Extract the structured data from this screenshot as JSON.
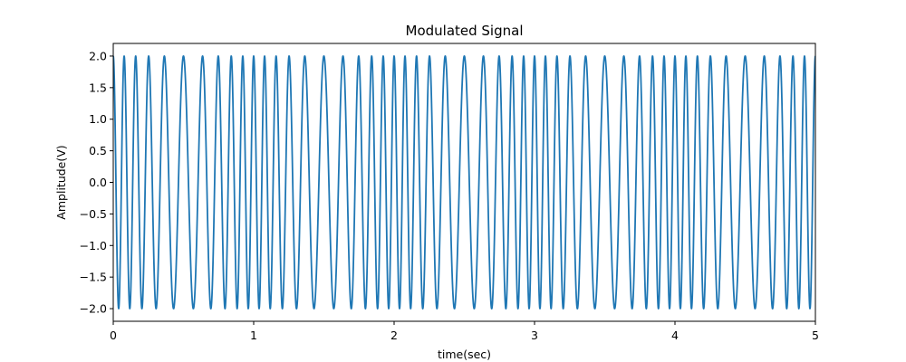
{
  "chart_data": {
    "type": "line",
    "title": "Modulated Signal",
    "xlabel": "time(sec)",
    "ylabel": "Amplitude(V)",
    "xlim": [
      0,
      5
    ],
    "ylim": [
      -2.2,
      2.2
    ],
    "x_ticks": [
      "0",
      "1",
      "2",
      "3",
      "4",
      "5"
    ],
    "y_ticks": [
      "2.0",
      "1.5",
      "1.0",
      "0.5",
      "0.0",
      "−0.5",
      "−1.0",
      "−1.5",
      "−2.0"
    ],
    "grid": false,
    "legend": "none",
    "series": [
      {
        "color": "#1f77b4",
        "amplitude": 2.0,
        "signal": "frequency-modulated cosine",
        "carrier_frequency_hz": 10,
        "modulating_frequency_hz": 1,
        "frequency_deviation_hz": 3,
        "sample_step_sec": 0.001,
        "x_start": 0,
        "x_end": 5
      }
    ]
  }
}
